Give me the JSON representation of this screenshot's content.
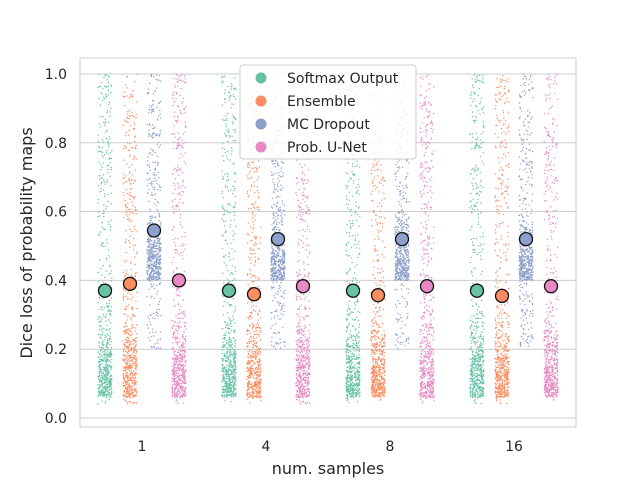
{
  "chart_data": {
    "type": "scatter",
    "subtype": "strip-with-means",
    "title": "",
    "xlabel": "num. samples",
    "ylabel": "Dice loss of probability maps",
    "categories": [
      "1",
      "4",
      "8",
      "16"
    ],
    "ylim": [
      -0.03,
      1.05
    ],
    "yticks": [
      "0.0",
      "0.2",
      "0.4",
      "0.6",
      "0.8",
      "1.0"
    ],
    "grid": true,
    "legend_position": "top-center",
    "series": [
      {
        "name": "Softmax Output",
        "color": "#66c2a5",
        "means": [
          0.37,
          0.37,
          0.37,
          0.37
        ]
      },
      {
        "name": "Ensemble",
        "color": "#fc8d62",
        "means": [
          0.39,
          0.36,
          0.357,
          0.355
        ]
      },
      {
        "name": "MC Dropout",
        "color": "#8da0cb",
        "means": [
          0.545,
          0.52,
          0.52,
          0.52
        ]
      },
      {
        "name": "Prob. U-Net",
        "color": "#e78ac3",
        "means": [
          0.4,
          0.383,
          0.383,
          0.383
        ]
      }
    ]
  }
}
